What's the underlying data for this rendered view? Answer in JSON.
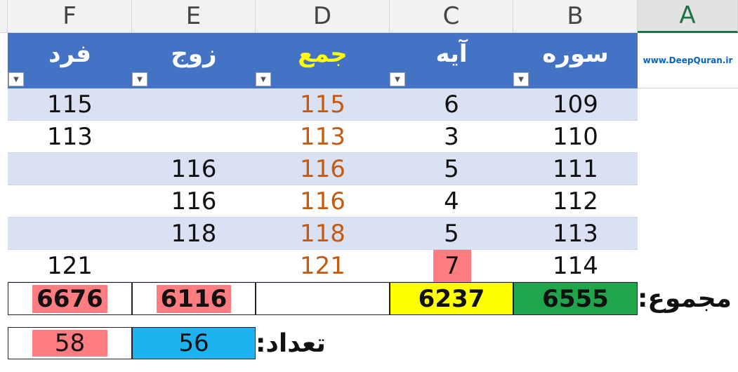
{
  "columns": {
    "A": "A",
    "B": "B",
    "C": "C",
    "D": "D",
    "E": "E",
    "F": "F"
  },
  "website": "www.DeepQuran.ir",
  "headers": {
    "surah": "سوره",
    "ayah": "آیه",
    "sum": "جمع",
    "even": "زوج",
    "odd": "فرد"
  },
  "rows": [
    {
      "surah": "109",
      "ayah": "6",
      "sum": "115",
      "even": "",
      "odd": "115"
    },
    {
      "surah": "110",
      "ayah": "3",
      "sum": "113",
      "even": "",
      "odd": "113"
    },
    {
      "surah": "111",
      "ayah": "5",
      "sum": "116",
      "even": "116",
      "odd": ""
    },
    {
      "surah": "112",
      "ayah": "4",
      "sum": "116",
      "even": "116",
      "odd": ""
    },
    {
      "surah": "113",
      "ayah": "5",
      "sum": "118",
      "even": "118",
      "odd": ""
    },
    {
      "surah": "114",
      "ayah": "7",
      "sum": "121",
      "even": "",
      "odd": "121"
    }
  ],
  "totals": {
    "label": "مجموع:",
    "surah": "6555",
    "ayah": "6237",
    "sum": "",
    "even": "6116",
    "odd": "6676"
  },
  "counts": {
    "label": "تعداد:",
    "even": "56",
    "odd": "58"
  },
  "colors": {
    "header_blue": "#4472c4",
    "band": "#d9e1f2",
    "sum_orange": "#c55a11",
    "green": "#1fa64a",
    "yellow": "#ffff00",
    "pink": "#ff7c80",
    "blue": "#1fb2f0"
  }
}
